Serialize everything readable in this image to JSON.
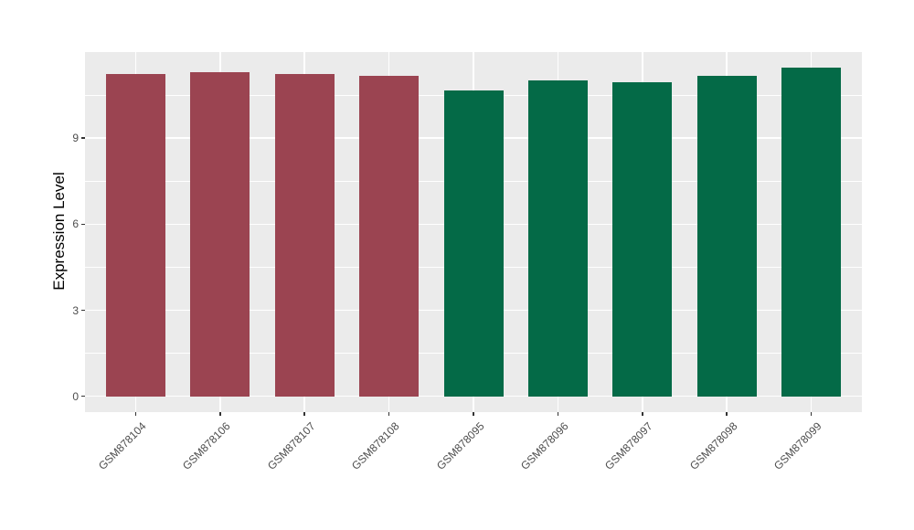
{
  "chart_data": {
    "type": "bar",
    "title": "",
    "xlabel": "",
    "ylabel": "Expression Level",
    "categories": [
      "GSM878104",
      "GSM878106",
      "GSM878107",
      "GSM878108",
      "GSM878095",
      "GSM878096",
      "GSM878097",
      "GSM878098",
      "GSM878099"
    ],
    "values": [
      11.25,
      11.3,
      11.25,
      11.18,
      10.67,
      11.0,
      10.95,
      11.17,
      11.45
    ],
    "bar_colors": [
      "#9B4451",
      "#9B4451",
      "#9B4451",
      "#9B4451",
      "#046A47",
      "#046A47",
      "#046A47",
      "#046A47",
      "#046A47"
    ],
    "y_ticks": [
      0,
      3,
      6,
      9
    ],
    "y_minor_ticks": [
      1.5,
      4.5,
      7.5,
      10.5
    ],
    "ylim": [
      -0.55,
      12.0
    ],
    "legend": "none",
    "grid": "on",
    "panel_bg": "#EBEBEB",
    "grid_color": "#FFFFFF",
    "tick_mark_color": "#333333",
    "tick_label_color": "#4D4D4D",
    "axis_title_color": "#000000",
    "background": "#FFFFFF"
  }
}
